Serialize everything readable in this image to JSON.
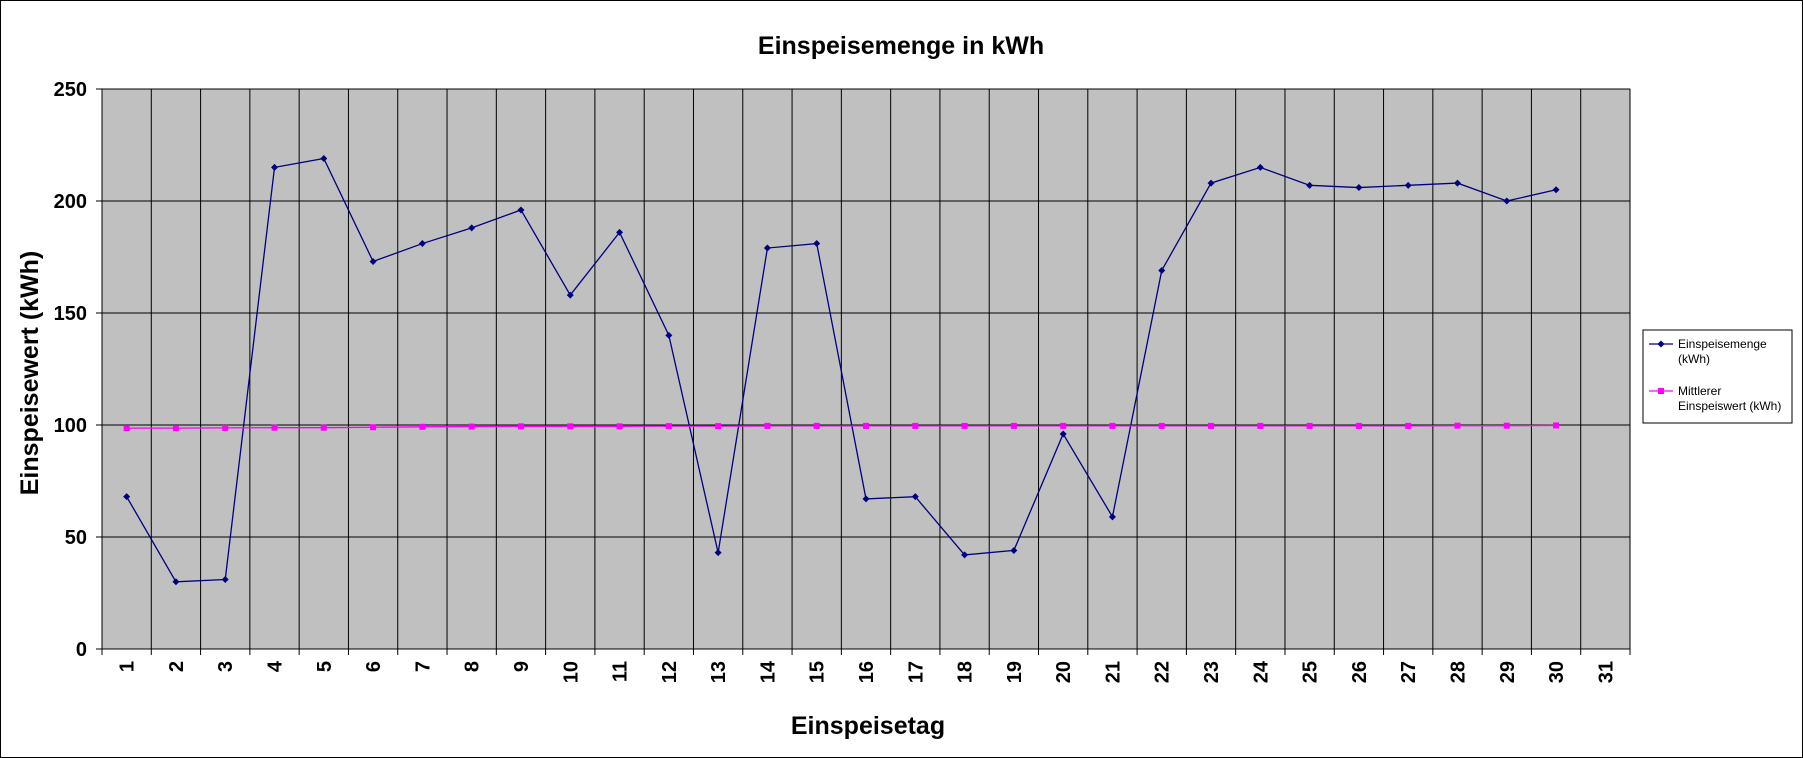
{
  "chart_data": {
    "type": "line",
    "title": "Einspeisemenge in kWh",
    "xlabel": "Einspeisetag",
    "ylabel": "Einspeisewert  (kWh)",
    "categories": [
      "1",
      "2",
      "3",
      "4",
      "5",
      "6",
      "7",
      "8",
      "9",
      "10",
      "11",
      "12",
      "13",
      "14",
      "15",
      "16",
      "17",
      "18",
      "19",
      "20",
      "21",
      "22",
      "23",
      "24",
      "25",
      "26",
      "27",
      "28",
      "29",
      "30",
      "31"
    ],
    "ylim": [
      0,
      250
    ],
    "yticks": [
      0,
      50,
      100,
      150,
      200,
      250
    ],
    "grid": true,
    "legend_position": "right",
    "series": [
      {
        "name": "Einspeisemenge (kWh)",
        "legend_lines": [
          "Einspeisemenge",
          "(kWh)"
        ],
        "color": "#000080",
        "marker": "diamond",
        "values": [
          68,
          30,
          31,
          215,
          219,
          173,
          181,
          188,
          196,
          158,
          186,
          140,
          43,
          179,
          181,
          67,
          68,
          42,
          44,
          96,
          59,
          169,
          208,
          215,
          207,
          206,
          207,
          208,
          200,
          205,
          null
        ]
      },
      {
        "name": "Mittlerer Einspeiswert (kWh)",
        "legend_lines": [
          "Mittlerer",
          "Einspeiswert (kWh)"
        ],
        "color": "#ff00ff",
        "marker": "square",
        "values": [
          98.6,
          98.6,
          98.7,
          98.8,
          98.8,
          99.0,
          99.2,
          99.3,
          99.4,
          99.4,
          99.4,
          99.5,
          99.5,
          99.6,
          99.6,
          99.6,
          99.6,
          99.6,
          99.6,
          99.6,
          99.6,
          99.6,
          99.6,
          99.6,
          99.6,
          99.6,
          99.6,
          99.7,
          99.7,
          99.8,
          null
        ]
      }
    ]
  },
  "colors": {
    "plot_background": "#c0c0c0",
    "grid": "#000000"
  }
}
